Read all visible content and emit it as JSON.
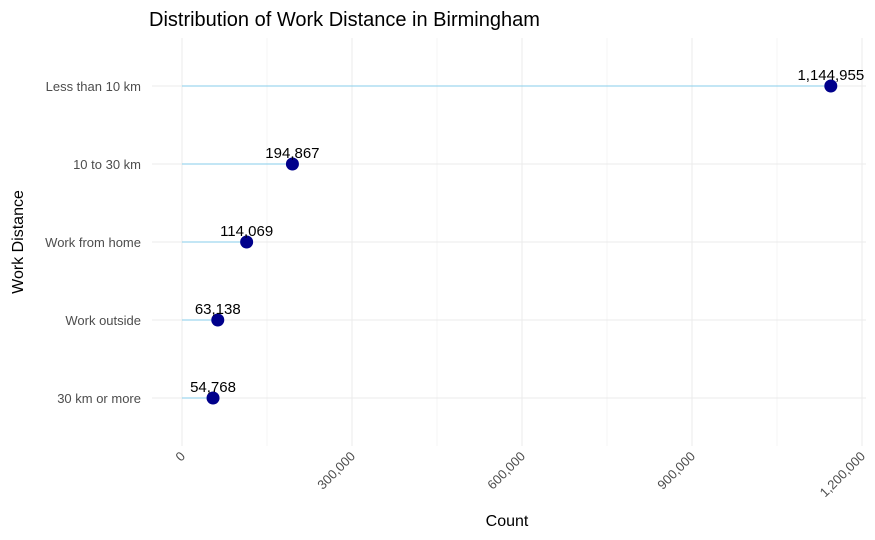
{
  "chart_data": {
    "type": "lollipop",
    "title": "Distribution of Work Distance in Birmingham",
    "xlabel": "Count",
    "ylabel": "Work Distance",
    "xlim": [
      0,
      1200000
    ],
    "x_ticks": [
      0,
      300000,
      600000,
      900000,
      1200000
    ],
    "x_tick_labels": [
      "0",
      "300,000",
      "600,000",
      "900,000",
      "1,200,000"
    ],
    "categories": [
      "Less than 10 km",
      "10 to 30 km",
      "Work from home",
      "Work outside",
      "30 km or more"
    ],
    "values": [
      1144955,
      194867,
      114069,
      63138,
      54768
    ],
    "value_labels": [
      "1,144,955",
      "194,867",
      "114,069",
      "63,138",
      "54,768"
    ],
    "grid": true,
    "legend": "none",
    "colors": {
      "point": "#00008b",
      "stem": "#87ceeb",
      "grid": "#ebebeb"
    }
  }
}
